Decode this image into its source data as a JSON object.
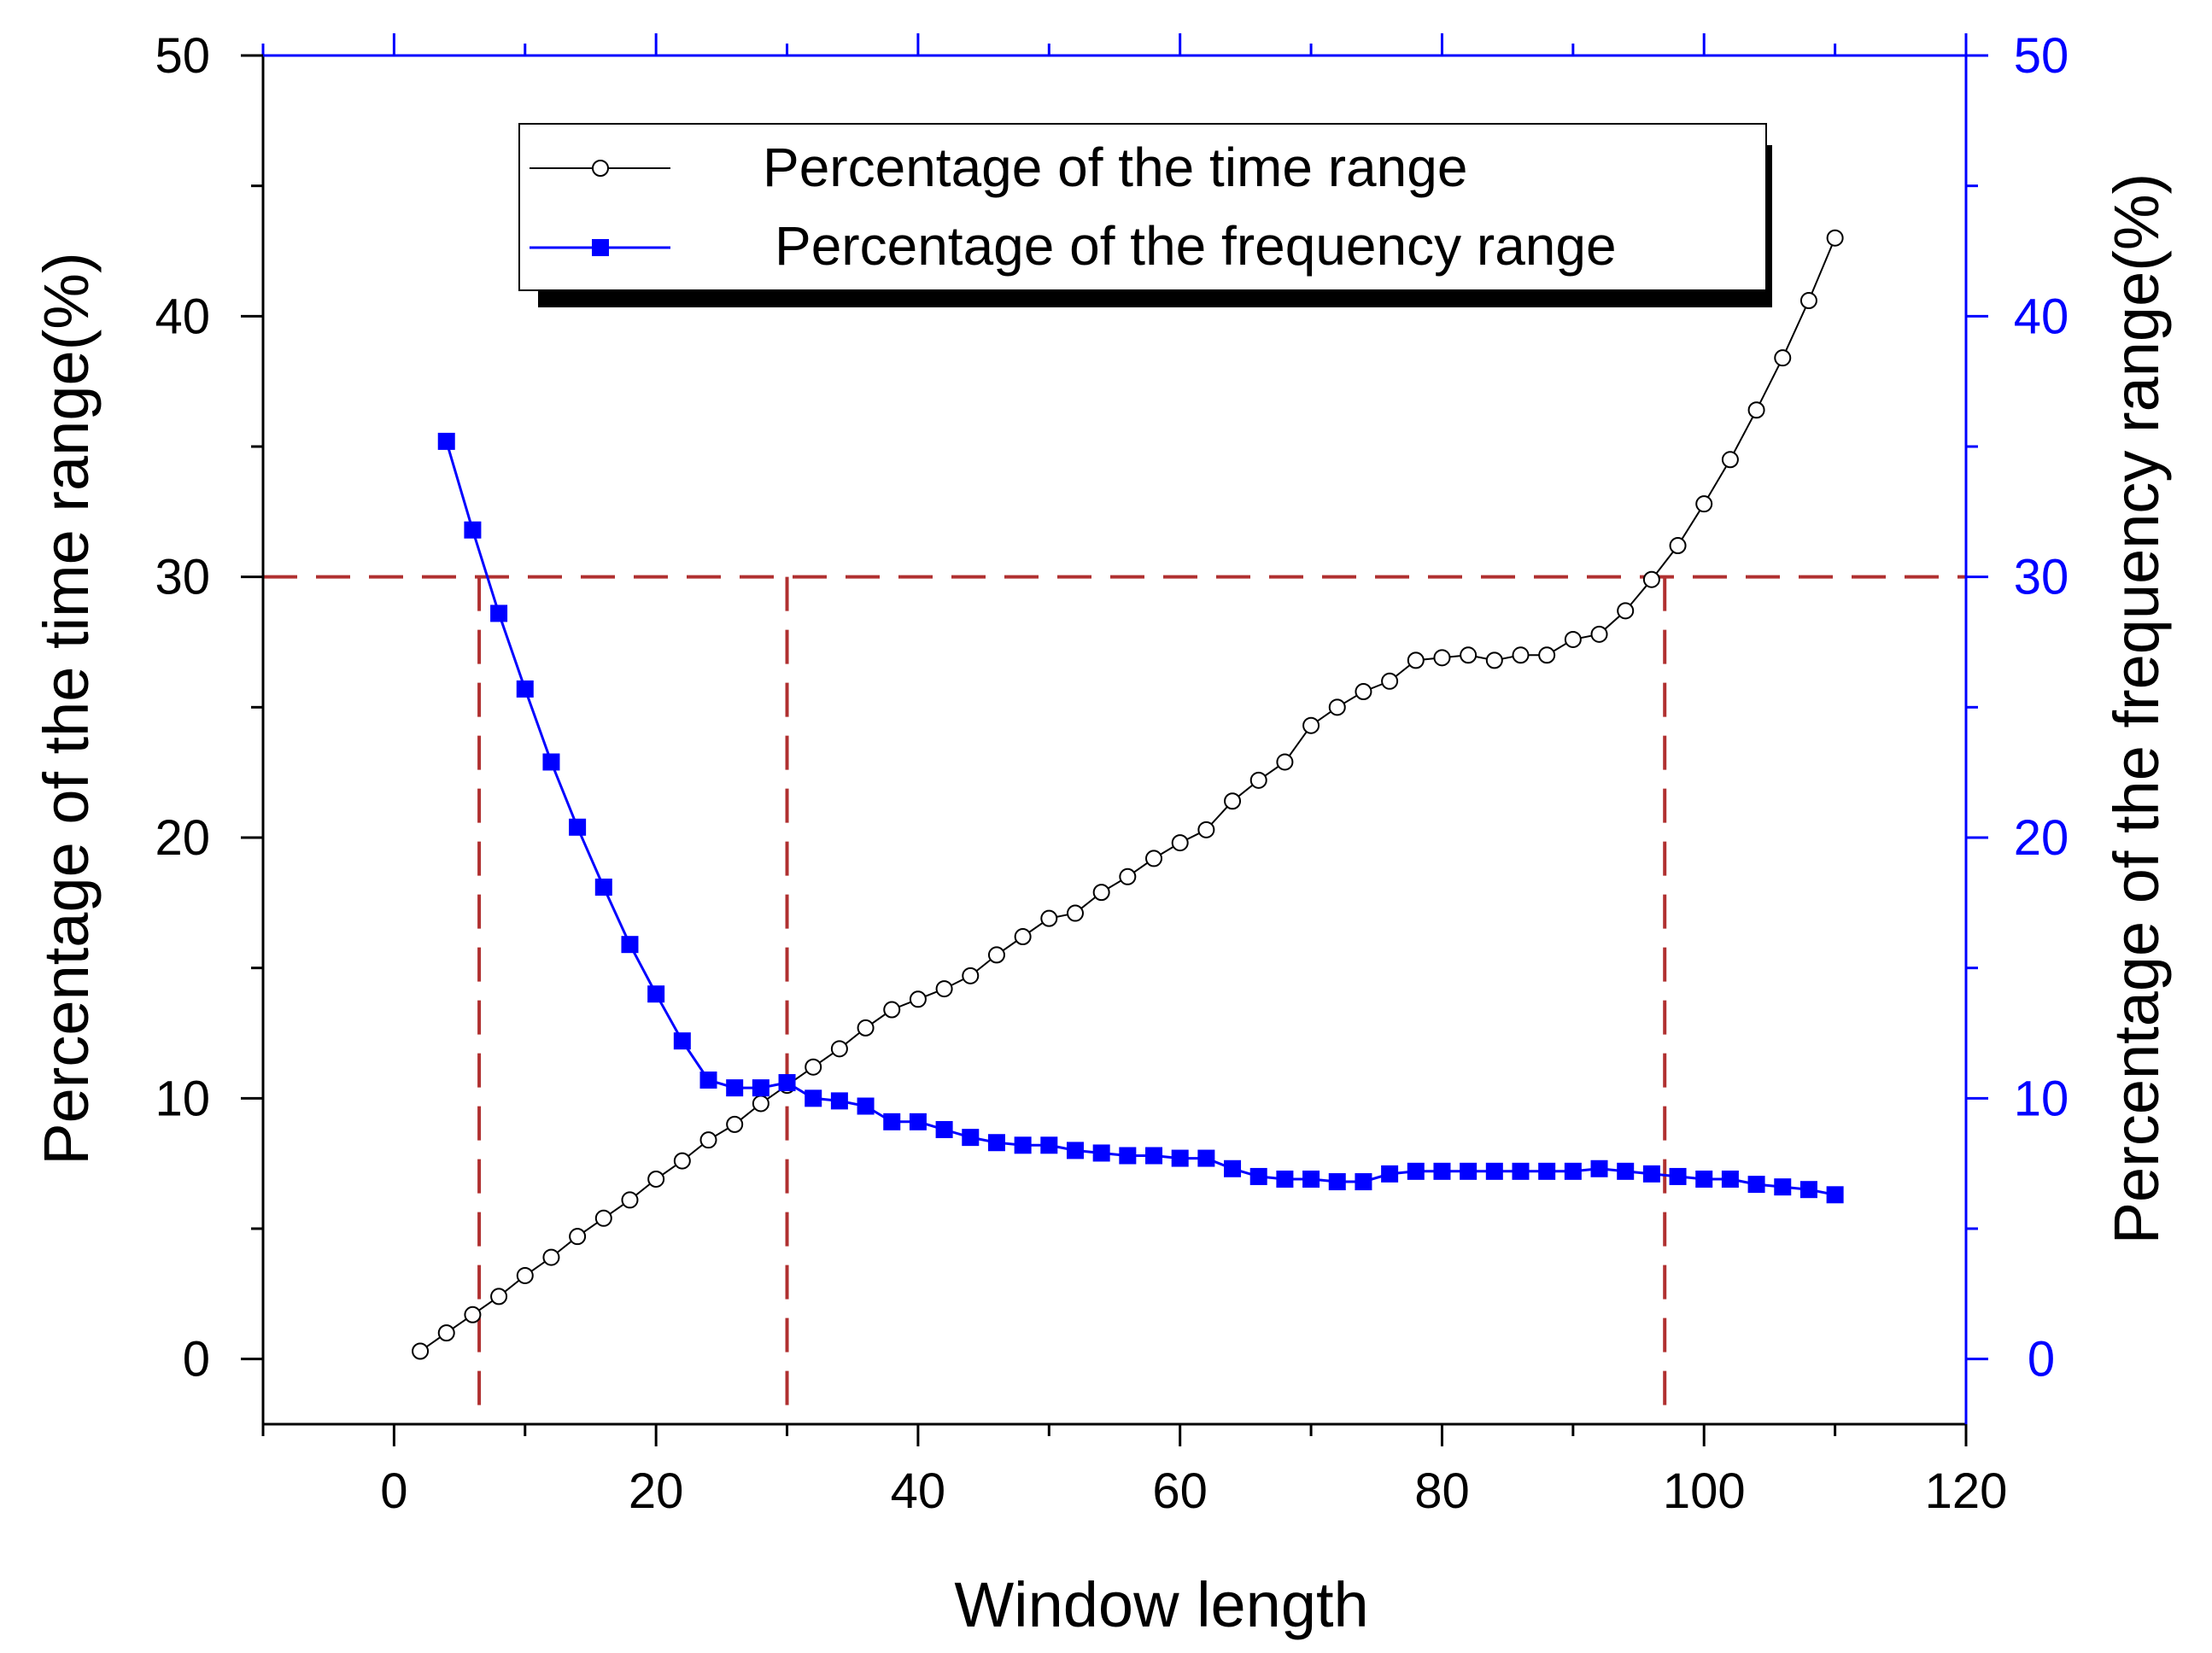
{
  "chart_data": {
    "type": "line",
    "title": "",
    "xlabel": "Window length",
    "ylabel_left": "Percentage of the time range(%)",
    "ylabel_right": "Percentage of the frequency range(%)",
    "xlim": [
      -10,
      120
    ],
    "ylim": [
      -2.5,
      50
    ],
    "x_ticks": [
      0,
      20,
      40,
      60,
      80,
      100,
      120
    ],
    "y_ticks": [
      0,
      10,
      20,
      30,
      40,
      50
    ],
    "grid": false,
    "legend_position": "top-center",
    "series": [
      {
        "name": "Percentage of the time range",
        "axis": "left",
        "color": "#000000",
        "marker": "open-circle",
        "x": [
          2,
          4,
          6,
          8,
          10,
          12,
          14,
          16,
          18,
          20,
          22,
          24,
          26,
          28,
          30,
          32,
          34,
          36,
          38,
          40,
          42,
          44,
          46,
          48,
          50,
          52,
          54,
          56,
          58,
          60,
          62,
          64,
          66,
          68,
          70,
          72,
          74,
          76,
          78,
          80,
          82,
          84,
          86,
          88,
          90,
          92,
          94,
          96,
          98,
          100,
          102,
          104,
          106,
          108,
          110
        ],
        "values": [
          0.3,
          1.0,
          1.7,
          2.4,
          3.2,
          3.9,
          4.7,
          5.4,
          6.1,
          6.9,
          7.6,
          8.4,
          9.0,
          9.8,
          10.5,
          11.2,
          11.9,
          12.7,
          13.4,
          13.8,
          14.2,
          14.7,
          15.5,
          16.2,
          16.9,
          17.1,
          17.9,
          18.5,
          19.2,
          19.8,
          20.3,
          21.4,
          22.2,
          22.9,
          24.3,
          25.0,
          25.6,
          26.0,
          26.8,
          26.9,
          27.0,
          26.8,
          27.0,
          27.0,
          27.6,
          27.8,
          28.7,
          29.9,
          31.2,
          32.8,
          34.5,
          36.4,
          38.4,
          40.6,
          43.0
        ]
      },
      {
        "name": "Percentage of the frequency range",
        "axis": "right",
        "color": "#0000ff",
        "marker": "filled-square",
        "x": [
          4,
          6,
          8,
          10,
          12,
          14,
          16,
          18,
          20,
          22,
          24,
          26,
          28,
          30,
          32,
          34,
          36,
          38,
          40,
          42,
          44,
          46,
          48,
          50,
          52,
          54,
          56,
          58,
          60,
          62,
          64,
          66,
          68,
          70,
          72,
          74,
          76,
          78,
          80,
          82,
          84,
          86,
          88,
          90,
          92,
          94,
          96,
          98,
          100,
          102,
          104,
          106,
          108,
          110
        ],
        "values": [
          35.2,
          31.8,
          28.6,
          25.7,
          22.9,
          20.4,
          18.1,
          15.9,
          14.0,
          12.2,
          10.7,
          10.4,
          10.4,
          10.6,
          10.0,
          9.9,
          9.7,
          9.1,
          9.1,
          8.8,
          8.5,
          8.3,
          8.2,
          8.2,
          8.0,
          7.9,
          7.8,
          7.8,
          7.7,
          7.7,
          7.3,
          7.0,
          6.9,
          6.9,
          6.8,
          6.8,
          7.1,
          7.2,
          7.2,
          7.2,
          7.2,
          7.2,
          7.2,
          7.2,
          7.3,
          7.2,
          7.1,
          7.0,
          6.9,
          6.9,
          6.7,
          6.6,
          6.5,
          6.3
        ]
      }
    ],
    "reference_lines": {
      "color": "#b03030",
      "style": "dashed",
      "horizontal": [
        30
      ],
      "vertical": [
        6.5,
        30,
        97
      ]
    },
    "colors": {
      "right_axis": "#0000ff",
      "left_axis": "#000000"
    }
  }
}
